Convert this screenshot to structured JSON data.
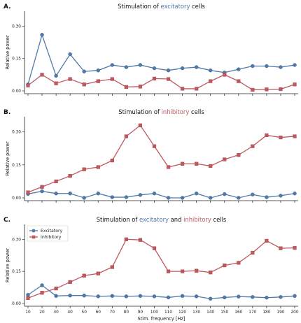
{
  "chart_data": [
    {
      "type": "line",
      "panel_label": "A.",
      "title_parts": [
        {
          "text": "Stimulation of ",
          "color": "#111111"
        },
        {
          "text": "excitatory",
          "color": "#4f79a8"
        },
        {
          "text": " cells",
          "color": "#111111"
        }
      ],
      "ylabel": "Relative power",
      "xlabel": "",
      "x": [
        10,
        20,
        30,
        40,
        50,
        60,
        70,
        80,
        90,
        100,
        110,
        120,
        130,
        140,
        150,
        160,
        170,
        180,
        190,
        200
      ],
      "ylim": [
        0,
        0.35
      ],
      "yticks": [
        "0.00",
        "0.15",
        "0.30"
      ],
      "show_xtick_labels": false,
      "legend": false,
      "series": [
        {
          "key": "exc",
          "marker": "circle",
          "color": "#4f79a8",
          "values": [
            0.03,
            0.26,
            0.07,
            0.17,
            0.09,
            0.095,
            0.12,
            0.11,
            0.12,
            0.105,
            0.095,
            0.105,
            0.11,
            0.095,
            0.085,
            0.1,
            0.115,
            0.115,
            0.11,
            0.12
          ]
        },
        {
          "key": "inh",
          "marker": "square",
          "color": "#c1585f",
          "values": [
            0.025,
            0.075,
            0.035,
            0.055,
            0.03,
            0.045,
            0.055,
            0.018,
            0.02,
            0.057,
            0.055,
            0.01,
            0.01,
            0.045,
            0.075,
            0.045,
            0.005,
            0.007,
            0.008,
            0.03
          ]
        }
      ]
    },
    {
      "type": "line",
      "panel_label": "B.",
      "title_parts": [
        {
          "text": "Stimulation of ",
          "color": "#111111"
        },
        {
          "text": "inhibitory",
          "color": "#c1585f"
        },
        {
          "text": " cells",
          "color": "#111111"
        }
      ],
      "ylabel": "Relative power",
      "xlabel": "",
      "x": [
        10,
        20,
        30,
        40,
        50,
        60,
        70,
        80,
        90,
        100,
        110,
        120,
        130,
        140,
        150,
        160,
        170,
        180,
        190,
        200
      ],
      "ylim": [
        0,
        0.35
      ],
      "yticks": [
        "0.00",
        "0.15",
        "0.30"
      ],
      "show_xtick_labels": false,
      "legend": false,
      "series": [
        {
          "key": "exc",
          "marker": "circle",
          "color": "#4f79a8",
          "values": [
            0.018,
            0.03,
            0.02,
            0.02,
            0.0,
            0.02,
            0.003,
            0.003,
            0.013,
            0.02,
            0.0,
            0.0,
            0.02,
            0.0,
            0.017,
            0.0,
            0.015,
            0.003,
            0.01,
            0.02
          ]
        },
        {
          "key": "inh",
          "marker": "square",
          "color": "#c1585f",
          "values": [
            0.025,
            0.05,
            0.075,
            0.1,
            0.13,
            0.14,
            0.17,
            0.28,
            0.33,
            0.235,
            0.14,
            0.155,
            0.155,
            0.145,
            0.175,
            0.195,
            0.235,
            0.285,
            0.275,
            0.28
          ]
        }
      ]
    },
    {
      "type": "line",
      "panel_label": "C.",
      "title_parts": [
        {
          "text": "Stimulation of ",
          "color": "#111111"
        },
        {
          "text": "excitatory",
          "color": "#4f79a8"
        },
        {
          "text": " and ",
          "color": "#111111"
        },
        {
          "text": "inhibitory",
          "color": "#c1585f"
        },
        {
          "text": " cells",
          "color": "#111111"
        }
      ],
      "ylabel": "Relative power",
      "xlabel": "Stim. frequency [Hz]",
      "x": [
        10,
        20,
        30,
        40,
        50,
        60,
        70,
        80,
        90,
        100,
        110,
        120,
        130,
        140,
        150,
        160,
        170,
        180,
        190,
        200
      ],
      "xtick_labels": [
        "10",
        "20",
        "30",
        "40",
        "50",
        "60",
        "70",
        "80",
        "90",
        "100",
        "110",
        "120",
        "130",
        "140",
        "150",
        "160",
        "170",
        "180",
        "190",
        "200"
      ],
      "ylim": [
        0,
        0.35
      ],
      "yticks": [
        "0.00",
        "0.15",
        "0.30"
      ],
      "show_xtick_labels": true,
      "legend": true,
      "legend_position": "top-left",
      "series": [
        {
          "key": "exc",
          "name": "Excitatory",
          "marker": "circle",
          "color": "#4f79a8",
          "values": [
            0.04,
            0.085,
            0.035,
            0.037,
            0.037,
            0.033,
            0.035,
            0.033,
            0.035,
            0.033,
            0.028,
            0.035,
            0.033,
            0.022,
            0.028,
            0.032,
            0.03,
            0.027,
            0.03,
            0.035
          ]
        },
        {
          "key": "inh",
          "name": "Inhibitory",
          "marker": "square",
          "color": "#c1585f",
          "values": [
            0.025,
            0.05,
            0.07,
            0.1,
            0.13,
            0.14,
            0.17,
            0.3,
            0.297,
            0.258,
            0.15,
            0.15,
            0.153,
            0.145,
            0.178,
            0.19,
            0.237,
            0.293,
            0.258,
            0.26
          ]
        }
      ]
    }
  ]
}
